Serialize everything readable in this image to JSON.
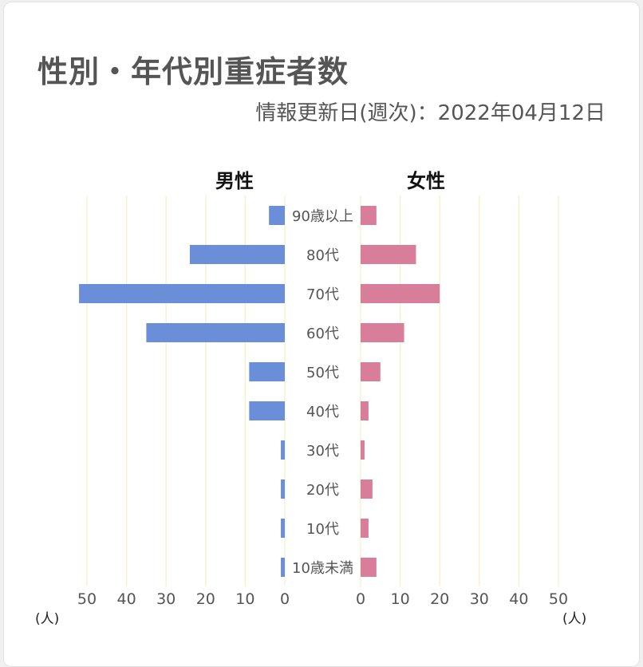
{
  "header": {
    "title": "性別・年代別重症者数",
    "updated": "情報更新日(週次)：2022年04月12日"
  },
  "chart_data": {
    "type": "bar",
    "orientation": "horizontal-pyramid",
    "categories": [
      "90歳以上",
      "80代",
      "70代",
      "60代",
      "50代",
      "40代",
      "30代",
      "20代",
      "10代",
      "10歳未満"
    ],
    "series": [
      {
        "name": "男性",
        "values": [
          4,
          24,
          52,
          35,
          9,
          9,
          1,
          1,
          1,
          1
        ]
      },
      {
        "name": "女性",
        "values": [
          4,
          14,
          20,
          11,
          5,
          2,
          1,
          3,
          2,
          4
        ]
      }
    ],
    "xlim": [
      0,
      50
    ],
    "ticks": [
      "0",
      "10",
      "20",
      "30",
      "40",
      "50"
    ],
    "unit_label": "(人)",
    "grid": true,
    "colors": {
      "male": "#6a8fd8",
      "female": "#d97e9a",
      "grid": "#f5f3cf",
      "text": "#555555"
    }
  }
}
